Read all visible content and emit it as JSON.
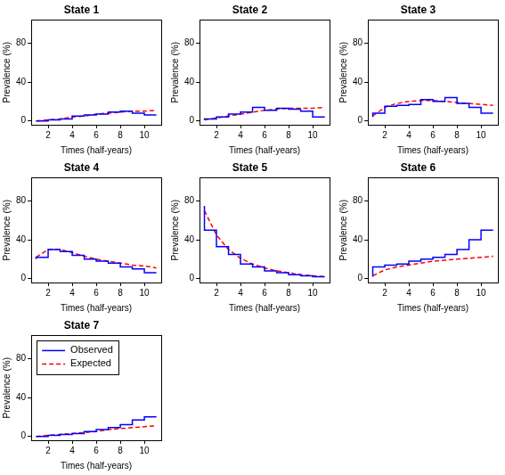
{
  "chart_data": [
    {
      "type": "line",
      "title": "State 1",
      "xlabel": "Times (half-years)",
      "ylabel": "Prevalence (%)",
      "x": [
        1,
        2,
        3,
        4,
        5,
        6,
        7,
        8,
        9,
        10,
        11
      ],
      "xlim": [
        0.6,
        11.4
      ],
      "xticks": [
        2,
        4,
        6,
        8,
        10
      ],
      "ylim": [
        -4,
        104
      ],
      "yticks": [
        0,
        40,
        80
      ],
      "grid": false,
      "series": [
        {
          "name": "Observed",
          "color": "#0000ff",
          "line_style": "steps",
          "values": [
            0,
            0,
            1,
            2,
            5,
            6,
            7,
            9,
            10,
            8,
            6
          ]
        },
        {
          "name": "Expected",
          "color": "#ff0000",
          "line_style": "dashed",
          "values": [
            0,
            1,
            2,
            4,
            5,
            7,
            8,
            9,
            10,
            10,
            11
          ]
        }
      ]
    },
    {
      "type": "line",
      "title": "State 2",
      "xlabel": "Times (half-years)",
      "ylabel": "Prevalence (%)",
      "x": [
        1,
        2,
        3,
        4,
        5,
        6,
        7,
        8,
        9,
        10,
        11
      ],
      "xlim": [
        0.6,
        11.4
      ],
      "xticks": [
        2,
        4,
        6,
        8,
        10
      ],
      "ylim": [
        -4,
        104
      ],
      "yticks": [
        0,
        40,
        80
      ],
      "grid": false,
      "series": [
        {
          "name": "Observed",
          "color": "#0000ff",
          "line_style": "steps",
          "values": [
            1,
            2,
            4,
            7,
            9,
            14,
            11,
            13,
            12,
            10,
            4
          ]
        },
        {
          "name": "Expected",
          "color": "#ff0000",
          "line_style": "dashed",
          "values": [
            1,
            3,
            5,
            7,
            9,
            11,
            12,
            13,
            13,
            13,
            14
          ]
        }
      ]
    },
    {
      "type": "line",
      "title": "State 3",
      "xlabel": "Times (half-years)",
      "ylabel": "Prevalence (%)",
      "x": [
        1,
        2,
        3,
        4,
        5,
        6,
        7,
        8,
        9,
        10,
        11
      ],
      "xlim": [
        0.6,
        11.4
      ],
      "xticks": [
        2,
        4,
        6,
        8,
        10
      ],
      "ylim": [
        -4,
        104
      ],
      "yticks": [
        0,
        40,
        80
      ],
      "grid": false,
      "series": [
        {
          "name": "Observed",
          "color": "#0000ff",
          "line_style": "steps",
          "values": [
            4,
            8,
            15,
            16,
            17,
            22,
            20,
            24,
            18,
            14,
            8
          ]
        },
        {
          "name": "Expected",
          "color": "#ff0000",
          "line_style": "dashed",
          "values": [
            5,
            14,
            18,
            20,
            21,
            21,
            20,
            19,
            18,
            17,
            16
          ]
        }
      ]
    },
    {
      "type": "line",
      "title": "State 4",
      "xlabel": "Times (half-years)",
      "ylabel": "Prevalence (%)",
      "x": [
        1,
        2,
        3,
        4,
        5,
        6,
        7,
        8,
        9,
        10,
        11
      ],
      "xlim": [
        0.6,
        11.4
      ],
      "xticks": [
        2,
        4,
        6,
        8,
        10
      ],
      "ylim": [
        -4,
        104
      ],
      "yticks": [
        0,
        40,
        80
      ],
      "grid": false,
      "series": [
        {
          "name": "Observed",
          "color": "#0000ff",
          "line_style": "steps",
          "values": [
            20,
            22,
            30,
            28,
            24,
            20,
            18,
            16,
            12,
            10,
            6
          ]
        },
        {
          "name": "Expected",
          "color": "#ff0000",
          "line_style": "dashed",
          "values": [
            22,
            30,
            30,
            27,
            23,
            20,
            18,
            16,
            14,
            13,
            11
          ]
        }
      ]
    },
    {
      "type": "line",
      "title": "State 5",
      "xlabel": "Times (half-years)",
      "ylabel": "Prevalence (%)",
      "x": [
        1,
        2,
        3,
        4,
        5,
        6,
        7,
        8,
        9,
        10,
        11
      ],
      "xlim": [
        0.6,
        11.4
      ],
      "xticks": [
        2,
        4,
        6,
        8,
        10
      ],
      "ylim": [
        -4,
        104
      ],
      "yticks": [
        0,
        40,
        80
      ],
      "grid": false,
      "series": [
        {
          "name": "Observed",
          "color": "#0000ff",
          "line_style": "steps",
          "values": [
            75,
            50,
            33,
            25,
            15,
            12,
            8,
            6,
            4,
            3,
            2
          ]
        },
        {
          "name": "Expected",
          "color": "#ff0000",
          "line_style": "dashed",
          "values": [
            70,
            45,
            30,
            21,
            15,
            11,
            8,
            6,
            4,
            3,
            2
          ]
        }
      ]
    },
    {
      "type": "line",
      "title": "State 6",
      "xlabel": "Times (half-years)",
      "ylabel": "Prevalence (%)",
      "x": [
        1,
        2,
        3,
        4,
        5,
        6,
        7,
        8,
        9,
        10,
        11
      ],
      "xlim": [
        0.6,
        11.4
      ],
      "xticks": [
        2,
        4,
        6,
        8,
        10
      ],
      "ylim": [
        -4,
        104
      ],
      "yticks": [
        0,
        40,
        80
      ],
      "grid": false,
      "series": [
        {
          "name": "Observed",
          "color": "#0000ff",
          "line_style": "steps",
          "values": [
            2,
            12,
            14,
            15,
            18,
            20,
            22,
            25,
            30,
            40,
            50
          ]
        },
        {
          "name": "Expected",
          "color": "#ff0000",
          "line_style": "dashed",
          "values": [
            3,
            9,
            12,
            14,
            16,
            18,
            19,
            20,
            21,
            22,
            23
          ]
        }
      ]
    },
    {
      "type": "line",
      "title": "State 7",
      "xlabel": "Times (half-years)",
      "ylabel": "Prevalence (%)",
      "x": [
        1,
        2,
        3,
        4,
        5,
        6,
        7,
        8,
        9,
        10,
        11
      ],
      "xlim": [
        0.6,
        11.4
      ],
      "xticks": [
        2,
        4,
        6,
        8,
        10
      ],
      "ylim": [
        -4,
        104
      ],
      "yticks": [
        0,
        40,
        80
      ],
      "grid": false,
      "legend": "top left",
      "series": [
        {
          "name": "Observed",
          "color": "#0000ff",
          "line_style": "steps",
          "values": [
            0,
            0,
            1,
            2,
            3,
            5,
            7,
            9,
            12,
            17,
            20
          ]
        },
        {
          "name": "Expected",
          "color": "#ff0000",
          "line_style": "dashed",
          "values": [
            0,
            1,
            2,
            3,
            4,
            5,
            7,
            8,
            9,
            10,
            11
          ]
        }
      ]
    }
  ]
}
